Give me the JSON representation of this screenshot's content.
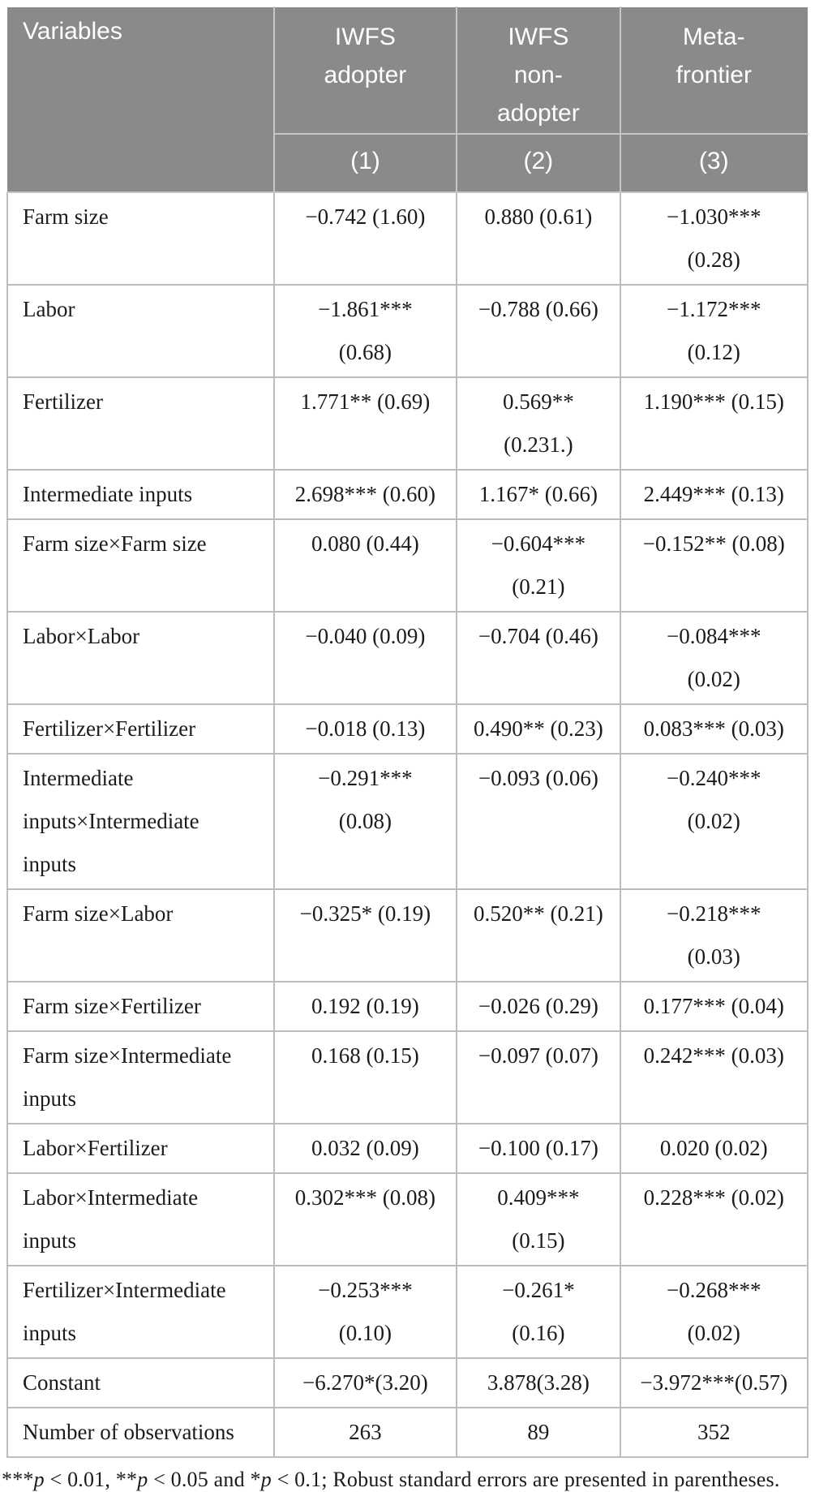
{
  "colors": {
    "header_bg": "#8a8a8a",
    "header_text": "#ffffff",
    "body_text": "#1b1b1b",
    "header_border": "#c6c6c6",
    "body_border": "#bdbdbd"
  },
  "table": {
    "variables_header": "Variables",
    "columns": [
      {
        "label_lines": [
          "IWFS",
          "adopter"
        ],
        "model_number": "(1)"
      },
      {
        "label_lines": [
          "IWFS",
          "non-",
          "adopter"
        ],
        "model_number": "(2)"
      },
      {
        "label_lines": [
          "Meta-",
          "frontier"
        ],
        "model_number": "(3)"
      }
    ],
    "rows": [
      {
        "variable_lines": [
          "Farm size"
        ],
        "cells": [
          [
            "−0.742 (1.60)"
          ],
          [
            "0.880 (0.61)"
          ],
          [
            "−1.030***",
            "(0.28)"
          ]
        ]
      },
      {
        "variable_lines": [
          "Labor"
        ],
        "cells": [
          [
            "−1.861***",
            "(0.68)"
          ],
          [
            "−0.788 (0.66)"
          ],
          [
            "−1.172***",
            "(0.12)"
          ]
        ]
      },
      {
        "variable_lines": [
          "Fertilizer"
        ],
        "cells": [
          [
            "1.771** (0.69)"
          ],
          [
            "0.569**",
            "(0.231.)"
          ],
          [
            "1.190*** (0.15)"
          ]
        ]
      },
      {
        "variable_lines": [
          "Intermediate inputs"
        ],
        "cells": [
          [
            "2.698*** (0.60)"
          ],
          [
            "1.167* (0.66)"
          ],
          [
            "2.449*** (0.13)"
          ]
        ]
      },
      {
        "variable_lines": [
          "Farm size×Farm size"
        ],
        "cells": [
          [
            "0.080 (0.44)"
          ],
          [
            "−0.604***",
            "(0.21)"
          ],
          [
            "−0.152** (0.08)"
          ]
        ]
      },
      {
        "variable_lines": [
          "Labor×Labor"
        ],
        "cells": [
          [
            "−0.040 (0.09)"
          ],
          [
            "−0.704 (0.46)"
          ],
          [
            "−0.084***",
            "(0.02)"
          ]
        ]
      },
      {
        "variable_lines": [
          "Fertilizer×Fertilizer"
        ],
        "cells": [
          [
            "−0.018 (0.13)"
          ],
          [
            "0.490** (0.23)"
          ],
          [
            "0.083*** (0.03)"
          ]
        ]
      },
      {
        "variable_lines": [
          "Intermediate",
          "inputs×Intermediate",
          "inputs"
        ],
        "cells": [
          [
            "−0.291***",
            "(0.08)"
          ],
          [
            "−0.093 (0.06)"
          ],
          [
            "−0.240***",
            "(0.02)"
          ]
        ]
      },
      {
        "variable_lines": [
          "Farm size×Labor"
        ],
        "cells": [
          [
            "−0.325* (0.19)"
          ],
          [
            "0.520** (0.21)"
          ],
          [
            "−0.218***",
            "(0.03)"
          ]
        ]
      },
      {
        "variable_lines": [
          "Farm size×Fertilizer"
        ],
        "cells": [
          [
            "0.192 (0.19)"
          ],
          [
            "−0.026 (0.29)"
          ],
          [
            "0.177*** (0.04)"
          ]
        ]
      },
      {
        "variable_lines": [
          "Farm size×Intermediate",
          "inputs"
        ],
        "cells": [
          [
            "0.168 (0.15)"
          ],
          [
            "−0.097 (0.07)"
          ],
          [
            "0.242*** (0.03)"
          ]
        ]
      },
      {
        "variable_lines": [
          "Labor×Fertilizer"
        ],
        "cells": [
          [
            "0.032 (0.09)"
          ],
          [
            "−0.100 (0.17)"
          ],
          [
            "0.020 (0.02)"
          ]
        ]
      },
      {
        "variable_lines": [
          "Labor×Intermediate",
          "inputs"
        ],
        "cells": [
          [
            "0.302*** (0.08)"
          ],
          [
            "0.409***",
            "(0.15)"
          ],
          [
            "0.228*** (0.02)"
          ]
        ]
      },
      {
        "variable_lines": [
          "Fertilizer×Intermediate",
          "inputs"
        ],
        "cells": [
          [
            "−0.253***",
            "(0.10)"
          ],
          [
            "−0.261*",
            "(0.16)"
          ],
          [
            "−0.268***",
            "(0.02)"
          ]
        ]
      },
      {
        "variable_lines": [
          "Constant"
        ],
        "cells": [
          [
            "−6.270*(3.20)"
          ],
          [
            "3.878(3.28)"
          ],
          [
            "−3.972***(0.57)"
          ]
        ]
      },
      {
        "variable_lines": [
          "Number of observations"
        ],
        "cells": [
          [
            "263"
          ],
          [
            "89"
          ],
          [
            "352"
          ]
        ]
      }
    ]
  },
  "footnote": {
    "segments": [
      {
        "text": "***"
      },
      {
        "text": "p",
        "italic": true
      },
      {
        "text": " < 0.01, "
      },
      {
        "text": "**"
      },
      {
        "text": "p",
        "italic": true
      },
      {
        "text": " < 0.05 and "
      },
      {
        "text": "*"
      },
      {
        "text": "p",
        "italic": true
      },
      {
        "text": " < 0.1; Robust standard errors are presented in parentheses."
      }
    ]
  }
}
